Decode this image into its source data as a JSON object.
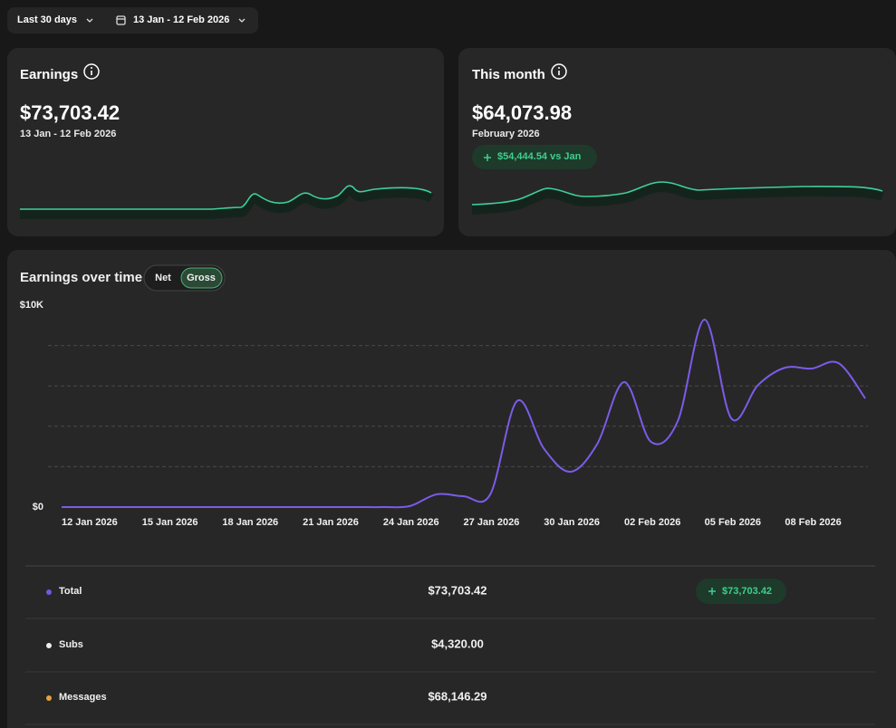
{
  "toolbar": {
    "range": "Last 30 days",
    "dates": "13 Jan - 12 Feb 2026"
  },
  "cards": [
    {
      "title": "Earnings",
      "amount": "$73,703.42",
      "subtitle": "13 Jan - 12 Feb 2026"
    },
    {
      "title": "This month",
      "amount": "$64,073.98",
      "subtitle": "February 2026",
      "badge": "$54,444.54 vs Jan"
    }
  ],
  "chart_data": {
    "type": "line",
    "title": "Earnings over time",
    "toggle": [
      "Net",
      "Gross"
    ],
    "selected": "Gross",
    "categories": [
      "12 Jan 2026",
      null,
      null,
      "15 Jan 2026",
      null,
      null,
      "18 Jan 2026",
      null,
      null,
      "21 Jan 2026",
      null,
      null,
      "24 Jan 2026",
      null,
      null,
      "27 Jan 2026",
      null,
      null,
      "30 Jan 2026",
      null,
      null,
      "02 Feb 2026",
      null,
      null,
      "05 Feb 2026",
      null,
      null,
      "08 Feb 2026",
      null,
      null,
      null
    ],
    "series": [
      {
        "name": "Total",
        "color": "#7b5ce8",
        "values": [
          0,
          0,
          0,
          0,
          0,
          0,
          0,
          0,
          0,
          0,
          0,
          0,
          0,
          50,
          630,
          540,
          630,
          5250,
          2900,
          1750,
          3140,
          6190,
          3230,
          4260,
          9280,
          4390,
          6050,
          6900,
          6860,
          7130,
          5380
        ]
      }
    ],
    "ylim": [
      0,
      10000
    ],
    "yticks": [
      {
        "value": 0,
        "label": "$0"
      },
      {
        "value": 10000,
        "label": "$10K"
      }
    ],
    "grid_lines": [
      2000,
      4000,
      6000,
      8000
    ]
  },
  "breakdown": {
    "rows": [
      {
        "name": "Total",
        "color": "#7158e2",
        "amount": "$73,703.42",
        "change": "$73,703.42"
      },
      {
        "name": "Subs",
        "color": "#eeeeee",
        "amount": "$4,320.00"
      },
      {
        "name": "Messages",
        "color": "#e8a23a",
        "amount": "$68,146.29"
      }
    ]
  }
}
